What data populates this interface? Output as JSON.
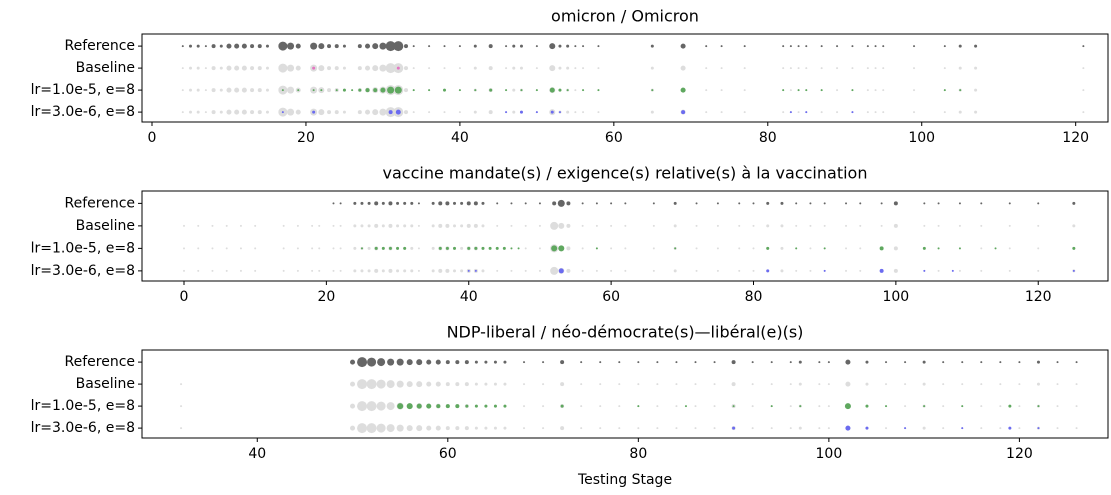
{
  "chart_data": [
    {
      "type": "scatter",
      "title": "omicron / Omicron",
      "categories": [
        "Reference",
        "Baseline",
        "lr=1.0e-5, e=8",
        "lr=3.0e-6, e=8"
      ],
      "xlim": [
        -1.3,
        124.2
      ],
      "xticks": [
        0,
        20,
        40,
        60,
        80,
        100,
        120
      ],
      "series": [
        {
          "rows": [
            0
          ],
          "color": "#666666",
          "x": [
            4,
            5,
            6,
            7,
            8,
            9,
            10,
            11,
            12,
            13,
            14,
            15,
            17,
            18,
            19,
            21,
            22,
            23,
            24,
            25,
            27,
            28,
            29,
            30,
            31,
            32,
            33,
            34,
            36,
            38,
            40,
            42,
            44,
            46,
            47,
            48,
            50,
            52,
            53,
            54,
            55,
            56,
            58,
            65,
            69,
            72,
            74,
            77,
            82,
            83,
            84,
            85,
            87,
            89,
            91,
            93,
            94,
            95,
            99,
            103,
            105,
            107,
            121
          ],
          "sizes": [
            1,
            1.5,
            1.5,
            1,
            2,
            1.5,
            2.5,
            2.5,
            2.5,
            2,
            2,
            1.5,
            4.5,
            3.5,
            2.5,
            3.5,
            3,
            2,
            2,
            1.5,
            2,
            2.5,
            3,
            3.5,
            5,
            5,
            2,
            1,
            1,
            1,
            1,
            1.5,
            2,
            1,
            1.5,
            1.5,
            1,
            3,
            1.5,
            1.5,
            1,
            1,
            1,
            1.5,
            2.5,
            1,
            1,
            1,
            1,
            1,
            1,
            1,
            1,
            1,
            1,
            1,
            1,
            1,
            1,
            1,
            1.5,
            1.5,
            1
          ]
        },
        {
          "rows": [
            1,
            2,
            3
          ],
          "color": "#dddddd",
          "x": [
            4,
            5,
            6,
            7,
            8,
            9,
            10,
            11,
            12,
            13,
            14,
            15,
            17,
            18,
            19,
            21,
            22,
            23,
            24,
            25,
            27,
            28,
            29,
            30,
            31,
            32,
            33,
            34,
            36,
            38,
            40,
            42,
            44,
            46,
            47,
            48,
            50,
            52,
            53,
            54,
            55,
            56,
            58,
            65,
            69,
            72,
            74,
            77,
            82,
            83,
            84,
            85,
            87,
            89,
            91,
            93,
            94,
            95,
            99,
            103,
            105,
            107,
            121
          ],
          "sizes": [
            1,
            1.5,
            1.5,
            1,
            2,
            1.5,
            2.5,
            2.5,
            2.5,
            2,
            2,
            1.5,
            4.5,
            3.5,
            2.5,
            3.5,
            3,
            2,
            2,
            1.5,
            2,
            2.5,
            3,
            3.5,
            5,
            5,
            2,
            1,
            1,
            1,
            1,
            1.5,
            2,
            1,
            1.5,
            1.5,
            1,
            3,
            1.5,
            1.5,
            1,
            1,
            1,
            1.5,
            2.5,
            1,
            1,
            1,
            1,
            1,
            1,
            1,
            1,
            1,
            1,
            1,
            1,
            1,
            1,
            1,
            1.5,
            1.5,
            1
          ]
        },
        {
          "rows": [
            1
          ],
          "color": "#e377c2",
          "x": [
            21,
            32
          ],
          "sizes": [
            1.5,
            1.5
          ]
        },
        {
          "rows": [
            2
          ],
          "color": "#5fa85f",
          "x": [
            17,
            19,
            21,
            22,
            24,
            25,
            26,
            27,
            28,
            29,
            30,
            31,
            32,
            34,
            36,
            38,
            40,
            42,
            44,
            46,
            48,
            50,
            52,
            53,
            54,
            56,
            58,
            65,
            69,
            82,
            84,
            85,
            87,
            91,
            103,
            105
          ],
          "sizes": [
            1,
            1,
            1,
            1,
            1,
            1.5,
            1,
            1.5,
            2,
            2,
            2.5,
            3.5,
            3.5,
            1,
            1,
            1.5,
            1,
            1,
            1.5,
            1,
            1,
            1,
            2.5,
            1.5,
            1,
            1,
            1,
            1,
            2.5,
            1,
            1,
            1,
            1,
            1,
            1,
            1
          ]
        },
        {
          "rows": [
            3
          ],
          "color": "#6b6bf0",
          "x": [
            17,
            21,
            31,
            32,
            46,
            48,
            50,
            52,
            53,
            69,
            83,
            85,
            91
          ],
          "sizes": [
            1,
            1.5,
            2,
            2.5,
            1,
            1.5,
            1,
            1.5,
            1,
            2,
            1,
            1,
            1
          ]
        }
      ]
    },
    {
      "type": "scatter",
      "title": "vaccine mandate(s) / exigence(s) relative(s) à la vaccination",
      "categories": [
        "Reference",
        "Baseline",
        "lr=1.0e-5, e=8",
        "lr=3.0e-6, e=8"
      ],
      "xlim": [
        -5.9,
        129.8
      ],
      "xticks": [
        0,
        20,
        40,
        60,
        80,
        100,
        120
      ],
      "series": [
        {
          "rows": [
            0
          ],
          "color": "#666666",
          "x": [
            21,
            22,
            24,
            25,
            26,
            27,
            28,
            29,
            30,
            31,
            32,
            33,
            35,
            36,
            37,
            38,
            39,
            40,
            41,
            42,
            44,
            46,
            48,
            50,
            52,
            53,
            54,
            56,
            58,
            60,
            62,
            66,
            69,
            72,
            75,
            78,
            80,
            82,
            84,
            86,
            88,
            90,
            93,
            95,
            98,
            100,
            104,
            106,
            109,
            112,
            116,
            120,
            125
          ],
          "sizes": [
            1,
            1,
            1.5,
            1.5,
            1.5,
            2,
            1.5,
            2,
            1.5,
            1.5,
            1.5,
            1,
            1.5,
            2,
            2,
            1.5,
            1.5,
            2,
            2,
            1.5,
            1,
            1,
            1,
            1,
            2,
            3.5,
            2,
            1,
            1,
            1,
            1,
            1,
            1.5,
            1,
            1,
            1,
            1,
            1.5,
            1.5,
            1,
            1,
            1,
            1,
            1,
            1,
            2,
            1,
            1,
            1,
            1,
            1,
            1,
            1.5
          ]
        },
        {
          "rows": [
            1,
            2,
            3
          ],
          "color": "#dddddd",
          "x": [
            0,
            2,
            4,
            6,
            8,
            10,
            14,
            16,
            18,
            19,
            21,
            22,
            24,
            25,
            26,
            27,
            28,
            29,
            30,
            31,
            32,
            33,
            35,
            36,
            37,
            38,
            39,
            40,
            41,
            42,
            44,
            46,
            48,
            50,
            52,
            53,
            54,
            56,
            58,
            60,
            62,
            66,
            69,
            72,
            75,
            78,
            80,
            82,
            84,
            86,
            88,
            90,
            93,
            95,
            98,
            100,
            104,
            106,
            109,
            112,
            116,
            120,
            125
          ],
          "sizes": [
            1,
            1,
            1,
            1,
            1,
            1,
            1,
            1,
            1,
            1,
            1,
            1,
            1.5,
            1.5,
            1.5,
            2,
            1.5,
            2,
            1.5,
            1.5,
            1.5,
            1,
            1.5,
            2,
            2,
            1.5,
            1.5,
            2,
            2,
            1.5,
            1,
            1,
            1,
            1,
            4,
            3,
            2,
            1,
            1,
            1,
            1,
            1,
            1.5,
            1,
            1,
            1,
            1,
            1.5,
            1.5,
            1,
            1,
            1,
            1,
            1,
            1,
            2,
            1,
            1,
            1,
            1,
            1,
            1,
            1.5
          ]
        },
        {
          "rows": [
            2
          ],
          "color": "#5fa85f",
          "x": [
            25,
            27,
            28,
            29,
            30,
            31,
            36,
            37,
            38,
            40,
            41,
            42,
            43,
            44,
            45,
            46,
            47,
            52,
            53,
            58,
            69,
            82,
            86,
            90,
            98,
            104,
            106,
            109,
            114,
            125
          ],
          "sizes": [
            1,
            1.5,
            1.5,
            1.5,
            1.5,
            1.5,
            1.5,
            1.5,
            1.5,
            1.5,
            1.5,
            1.5,
            1.5,
            1.5,
            1.5,
            1,
            1,
            3,
            3,
            1,
            1,
            1.5,
            1,
            1,
            2,
            1.5,
            1,
            1,
            1,
            1.5
          ]
        },
        {
          "rows": [
            3
          ],
          "color": "#6b6bf0",
          "x": [
            40,
            41,
            53,
            82,
            90,
            98,
            104,
            108,
            125
          ],
          "sizes": [
            1,
            1,
            2.5,
            1.5,
            1,
            2,
            1,
            1,
            1
          ]
        }
      ]
    },
    {
      "type": "scatter",
      "title": "NDP-liberal / néo-démocrate(s)—libéral(e)(s)",
      "xlabel": "Testing Stage",
      "categories": [
        "Reference",
        "Baseline",
        "lr=1.0e-5, e=8",
        "lr=3.0e-6, e=8"
      ],
      "xlim": [
        27.9,
        129.3
      ],
      "xticks": [
        40,
        60,
        80,
        100,
        120
      ],
      "series": [
        {
          "rows": [
            0
          ],
          "color": "#666666",
          "x": [
            50,
            51,
            52,
            53,
            54,
            55,
            56,
            57,
            58,
            59,
            60,
            61,
            62,
            63,
            64,
            65,
            66,
            68,
            70,
            72,
            74,
            76,
            78,
            80,
            82,
            84,
            86,
            88,
            90,
            92,
            94,
            96,
            97,
            99,
            100,
            102,
            104,
            106,
            108,
            110,
            112,
            114,
            116,
            118,
            120,
            122,
            124,
            126
          ],
          "sizes": [
            2.5,
            5,
            4.5,
            4,
            3.5,
            3.5,
            3,
            3,
            2.5,
            2.5,
            2,
            2,
            2,
            1.5,
            1.5,
            1.5,
            1.5,
            1,
            1,
            2,
            1,
            1,
            1,
            1,
            1,
            1,
            1,
            1,
            2,
            1,
            1,
            1,
            1.5,
            1,
            1,
            2.5,
            1.5,
            1,
            1,
            1.5,
            1,
            1,
            1,
            1,
            1,
            1.5,
            1,
            1
          ]
        },
        {
          "rows": [
            1,
            2,
            3
          ],
          "color": "#dddddd",
          "x": [
            32,
            50,
            51,
            52,
            53,
            54,
            55,
            56,
            57,
            58,
            59,
            60,
            61,
            62,
            63,
            64,
            65,
            66,
            68,
            70,
            72,
            74,
            76,
            78,
            80,
            82,
            84,
            86,
            88,
            90,
            92,
            94,
            96,
            97,
            99,
            100,
            102,
            104,
            106,
            108,
            110,
            112,
            114,
            116,
            118,
            120,
            122,
            124,
            126
          ],
          "sizes": [
            1,
            2.5,
            5,
            5,
            4.5,
            4,
            3.5,
            3,
            3,
            2.5,
            2.5,
            2,
            2,
            2,
            1.5,
            1.5,
            1.5,
            1.5,
            1,
            1,
            2,
            1,
            1,
            1,
            1,
            1,
            1,
            1,
            1,
            2,
            1,
            1,
            1,
            1.5,
            1,
            1,
            2.5,
            1.5,
            1,
            1,
            1.5,
            1,
            1,
            1,
            1,
            1,
            1.5,
            1,
            1
          ]
        },
        {
          "rows": [
            2
          ],
          "color": "#5fa85f",
          "x": [
            55,
            56,
            57,
            58,
            59,
            60,
            61,
            62,
            63,
            64,
            65,
            66,
            72,
            80,
            85,
            90,
            94,
            97,
            102,
            104,
            106,
            110,
            114,
            119,
            122
          ],
          "sizes": [
            3,
            3,
            2.5,
            2.5,
            2,
            2,
            2,
            1.5,
            1.5,
            1.5,
            1.5,
            1.5,
            1.5,
            1,
            1,
            1,
            1,
            1,
            3,
            1.5,
            1,
            1,
            1,
            1.5,
            1
          ]
        },
        {
          "rows": [
            3
          ],
          "color": "#6b6bf0",
          "x": [
            90,
            102,
            104,
            108,
            114,
            119,
            122
          ],
          "sizes": [
            1.5,
            2.5,
            1.5,
            1,
            1,
            1.5,
            1
          ]
        }
      ]
    }
  ]
}
